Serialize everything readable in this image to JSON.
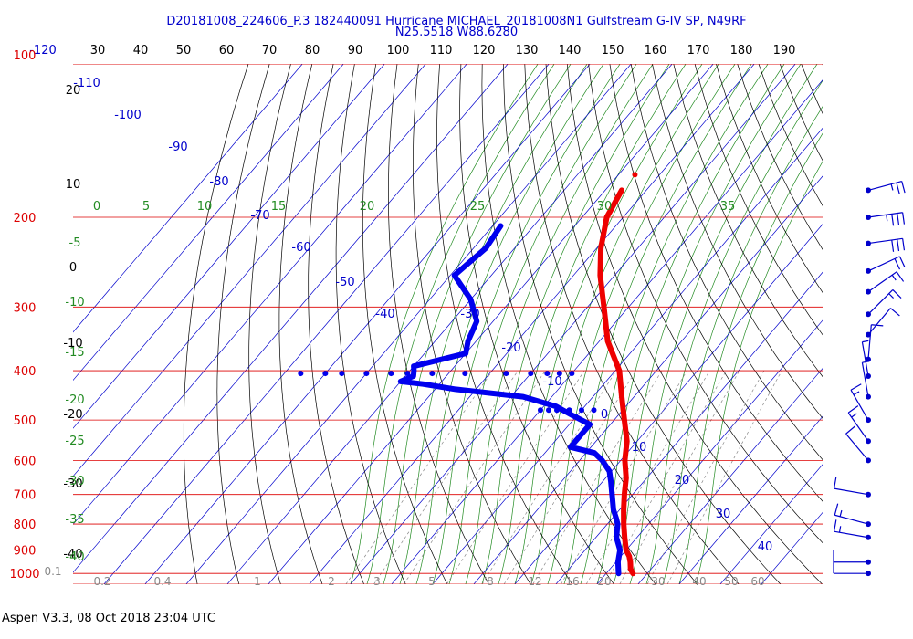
{
  "chart_data": {
    "type": "skew-t",
    "title_line1": "D20181008_224606_P.3 182440091 Hurricane MICHAEL_20181008N1 Gulfstream G-IV SP, N49RF",
    "title_line2": "N25.5518 W88.6280",
    "footer": "Aspen V3.3, 08 Oct 2018  23:04 UTC",
    "top_axis_ticks": [
      "-120",
      "30",
      "40",
      "50",
      "60",
      "70",
      "80",
      "90",
      "100",
      "110",
      "120",
      "130",
      "140",
      "150",
      "160",
      "170",
      "180",
      "190"
    ],
    "pressure_labels": [
      "100",
      "200",
      "300",
      "400",
      "500",
      "600",
      "700",
      "800",
      "900",
      "1000"
    ],
    "pressure_levels": [
      100,
      200,
      300,
      400,
      500,
      600,
      700,
      800,
      900,
      1000
    ],
    "isotherm_labels": [
      "-110",
      "-100",
      "-90",
      "-80",
      "-70",
      "-60",
      "-50",
      "-40",
      "-30",
      "-20",
      "-10",
      "0",
      "10",
      "20",
      "30",
      "40"
    ],
    "left_theta_labels": [
      "20",
      "10",
      "0",
      "-10",
      "-20",
      "-30",
      "-40"
    ],
    "theta_e_labels": [
      "0",
      "5",
      "10",
      "15",
      "20",
      "25",
      "30",
      "35"
    ],
    "left_thetae_labels": [
      "-5",
      "-10",
      "-15",
      "-20",
      "-25",
      "-30",
      "-35",
      "-40"
    ],
    "mixing_ratio_labels": [
      "0.1",
      "0.2",
      "0.4",
      "1",
      "2",
      "3",
      "5",
      "8",
      "12",
      "16",
      "20",
      "30",
      "40",
      "50",
      "60"
    ],
    "colors": {
      "title": "#0000cc",
      "pressure": "#dd0000",
      "isotherm": "#0000cc",
      "dry_adiabat": "#000000",
      "moist_adiabat": "#228B22",
      "mixing_ratio": "#888888",
      "temperature": "#ee0000",
      "dewpoint": "#0000ee",
      "wind": "#0000cc"
    },
    "temperature_profile": [
      [
        177,
        -56
      ],
      [
        200,
        -54
      ],
      [
        230,
        -49
      ],
      [
        260,
        -43.5
      ],
      [
        300,
        -36
      ],
      [
        350,
        -28
      ],
      [
        400,
        -19
      ],
      [
        450,
        -13
      ],
      [
        500,
        -7.5
      ],
      [
        550,
        -2.5
      ],
      [
        600,
        1
      ],
      [
        650,
        5
      ],
      [
        700,
        8
      ],
      [
        750,
        11
      ],
      [
        800,
        14
      ],
      [
        850,
        17
      ],
      [
        900,
        20
      ],
      [
        925,
        22
      ],
      [
        950,
        23.5
      ],
      [
        980,
        25
      ],
      [
        1000,
        26.5
      ]
    ],
    "dewpoint_profile": [
      [
        208,
        -78
      ],
      [
        230,
        -77
      ],
      [
        260,
        -79
      ],
      [
        290,
        -70
      ],
      [
        320,
        -64
      ],
      [
        350,
        -62
      ],
      [
        370,
        -60
      ],
      [
        392,
        -70
      ],
      [
        400,
        -69
      ],
      [
        410,
        -68
      ],
      [
        420,
        -70
      ],
      [
        425,
        -64
      ],
      [
        435,
        -55
      ],
      [
        450,
        -37
      ],
      [
        470,
        -27
      ],
      [
        490,
        -21
      ],
      [
        510,
        -15
      ],
      [
        540,
        -15
      ],
      [
        565,
        -15
      ],
      [
        580,
        -8
      ],
      [
        600,
        -4.5
      ],
      [
        630,
        -0.5
      ],
      [
        660,
        2
      ],
      [
        700,
        5
      ],
      [
        750,
        8.5
      ],
      [
        780,
        11
      ],
      [
        800,
        12.5
      ],
      [
        850,
        15
      ],
      [
        900,
        18.5
      ],
      [
        950,
        20.5
      ],
      [
        1000,
        23
      ]
    ],
    "dewpoint_scatter": [
      [
        405,
        -96
      ],
      [
        405,
        -90
      ],
      [
        405,
        -86
      ],
      [
        405,
        -80
      ],
      [
        405,
        -74
      ],
      [
        405,
        -70
      ],
      [
        405,
        -64
      ],
      [
        405,
        -56
      ],
      [
        405,
        -46
      ],
      [
        405,
        -40
      ],
      [
        405,
        -36
      ],
      [
        405,
        -33
      ],
      [
        405,
        -30
      ],
      [
        478,
        -30
      ],
      [
        478,
        -28
      ],
      [
        478,
        -26
      ],
      [
        478,
        -23
      ],
      [
        478,
        -20
      ],
      [
        478,
        -17
      ]
    ],
    "wind_barbs": [
      {
        "p": 177,
        "dir": 255,
        "spd": 25
      },
      {
        "p": 200,
        "dir": 262,
        "spd": 35
      },
      {
        "p": 225,
        "dir": 262,
        "spd": 30
      },
      {
        "p": 255,
        "dir": 245,
        "spd": 20
      },
      {
        "p": 280,
        "dir": 235,
        "spd": 15
      },
      {
        "p": 310,
        "dir": 225,
        "spd": 15
      },
      {
        "p": 340,
        "dir": 220,
        "spd": 10
      },
      {
        "p": 380,
        "dir": 185,
        "spd": 10
      },
      {
        "p": 410,
        "dir": 170,
        "spd": 5
      },
      {
        "p": 450,
        "dir": 170,
        "spd": 5
      },
      {
        "p": 500,
        "dir": 150,
        "spd": 15
      },
      {
        "p": 550,
        "dir": 145,
        "spd": 15
      },
      {
        "p": 600,
        "dir": 140,
        "spd": 10
      },
      {
        "p": 700,
        "dir": 100,
        "spd": 10
      },
      {
        "p": 800,
        "dir": 105,
        "spd": 15
      },
      {
        "p": 850,
        "dir": 100,
        "spd": 15
      },
      {
        "p": 950,
        "dir": 90,
        "spd": 10
      },
      {
        "p": 1000,
        "dir": 90,
        "spd": 10
      }
    ]
  }
}
